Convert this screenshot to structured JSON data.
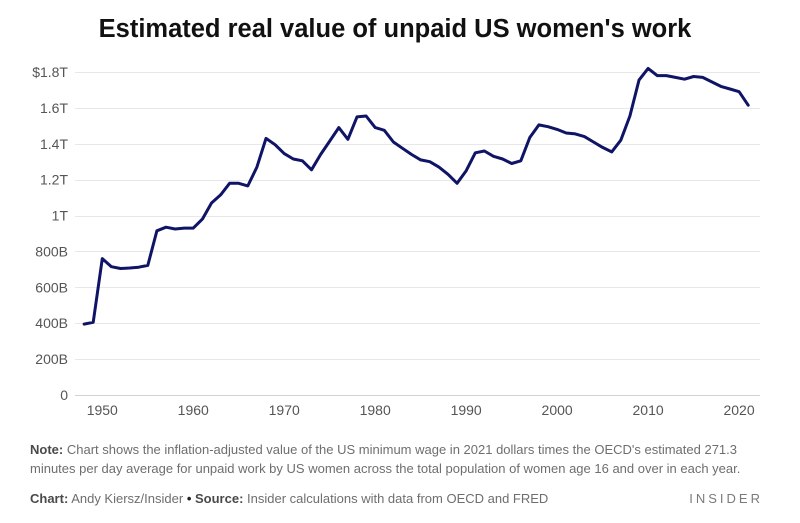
{
  "chart_data": {
    "type": "line",
    "title": "Estimated real value of unpaid US women's work",
    "xlabel": "",
    "ylabel": "",
    "x": [
      1948,
      1949,
      1950,
      1951,
      1952,
      1953,
      1954,
      1955,
      1956,
      1957,
      1958,
      1959,
      1960,
      1961,
      1962,
      1963,
      1964,
      1965,
      1966,
      1967,
      1968,
      1969,
      1970,
      1971,
      1972,
      1973,
      1974,
      1975,
      1976,
      1977,
      1978,
      1979,
      1980,
      1981,
      1982,
      1983,
      1984,
      1985,
      1986,
      1987,
      1988,
      1989,
      1990,
      1991,
      1992,
      1993,
      1994,
      1995,
      1996,
      1997,
      1998,
      1999,
      2000,
      2001,
      2002,
      2003,
      2004,
      2005,
      2006,
      2007,
      2008,
      2009,
      2010,
      2011,
      2012,
      2013,
      2014,
      2015,
      2016,
      2017,
      2018,
      2019,
      2020,
      2021
    ],
    "values": [
      395,
      405,
      760,
      715,
      705,
      708,
      712,
      722,
      915,
      935,
      925,
      930,
      930,
      980,
      1070,
      1115,
      1180,
      1180,
      1165,
      1270,
      1430,
      1395,
      1345,
      1315,
      1305,
      1255,
      1340,
      1415,
      1490,
      1425,
      1550,
      1555,
      1490,
      1475,
      1410,
      1375,
      1340,
      1310,
      1300,
      1270,
      1230,
      1180,
      1250,
      1350,
      1360,
      1330,
      1315,
      1290,
      1305,
      1435,
      1505,
      1495,
      1480,
      1460,
      1455,
      1440,
      1410,
      1380,
      1355,
      1420,
      1555,
      1755,
      1820,
      1780,
      1780,
      1770,
      1760,
      1775,
      1770,
      1745,
      1720,
      1705,
      1690,
      1615
    ],
    "xlim": [
      1947,
      2022.3
    ],
    "ylim": [
      0,
      1800
    ],
    "y_ticks": {
      "values": [
        1800,
        1600,
        1400,
        1200,
        1000,
        800,
        600,
        400,
        200,
        0
      ],
      "labels": [
        "$1.8T",
        "1.6T",
        "1.4T",
        "1.2T",
        "1T",
        "800B",
        "600B",
        "400B",
        "200B",
        "0"
      ]
    },
    "x_ticks": {
      "values": [
        1950,
        1960,
        1970,
        1980,
        1990,
        2000,
        2010,
        2020
      ],
      "labels": [
        "1950",
        "1960",
        "1970",
        "1980",
        "1990",
        "2000",
        "2010",
        "2020"
      ]
    },
    "grid": true,
    "colors": {
      "line": "#0f1466",
      "grid": "#e8e8e8",
      "baseline": "#d2d2d2"
    }
  },
  "note": {
    "label": "Note:",
    "text": "Chart shows the inflation-adjusted value of the US minimum wage in 2021 dollars times the OECD's estimated 271.3 minutes per day average for unpaid work by US women across the total population of women age 16 and over in each year."
  },
  "footer": {
    "chart_label": "Chart:",
    "chart_credit": "Andy Kiersz/Insider",
    "separator": "•",
    "source_label": "Source:",
    "source_text": "Insider calculations with data from OECD and FRED"
  },
  "brand": {
    "logo_text": "INSIDER"
  }
}
